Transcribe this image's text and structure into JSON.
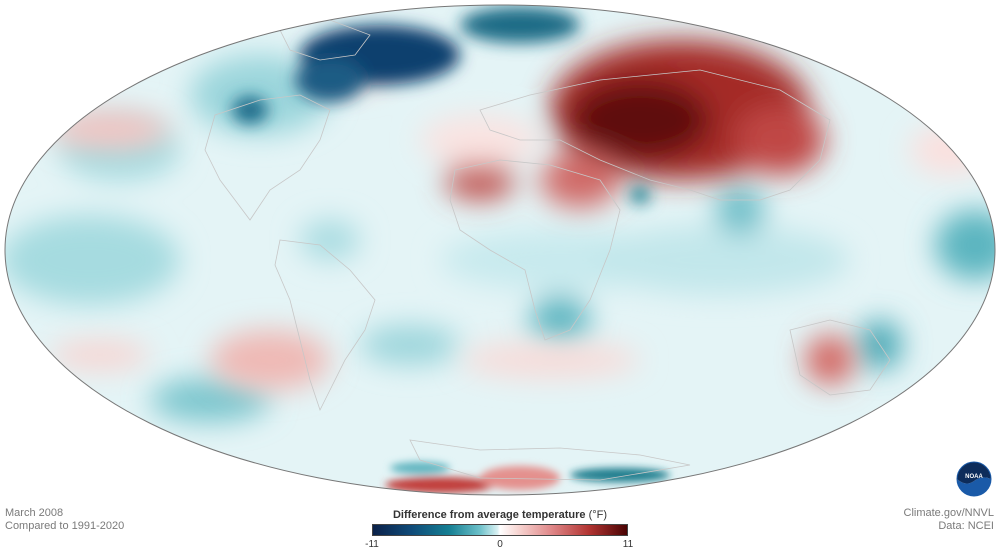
{
  "map": {
    "projection": "mollweide",
    "variable": "Difference from average temperature"
  },
  "footer": {
    "period": "March 2008",
    "baseline": "Compared to 1991-2020",
    "credit": "Climate.gov/NNVL",
    "source": "Data: NCEI"
  },
  "legend": {
    "title": "Difference from average temperature",
    "unit": "(°F)",
    "min": "-11",
    "mid": "0",
    "max": "11",
    "colors": {
      "cold_extreme": "#0b2149",
      "cold": "#157f93",
      "neutral": "#ffffff",
      "warm": "#e0898a",
      "warm_extreme": "#4a0404"
    }
  },
  "logo": {
    "text": "NOAA",
    "color": "#1a5aa8"
  }
}
